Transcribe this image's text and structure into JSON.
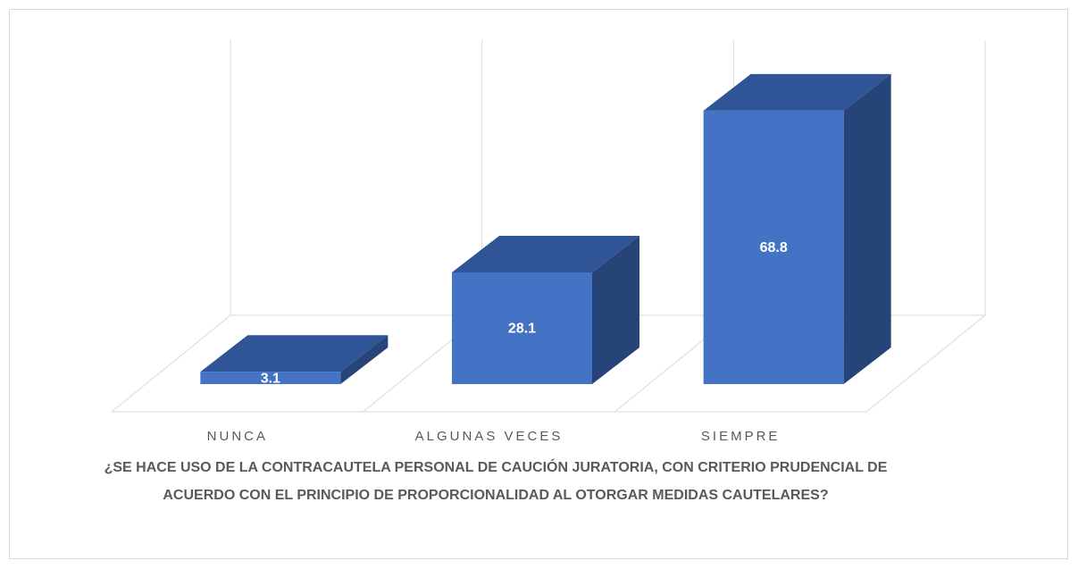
{
  "chart_data": {
    "type": "bar3d",
    "title": "¿SE HACE USO DE LA CONTRACAUTELA PERSONAL DE CAUCIÓN JURATORIA, CON CRITERIO PRUDENCIAL DE ACUERDO CON EL PRINCIPIO DE PROPORCIONALIDAD AL OTORGAR MEDIDAS CAUTELARES?",
    "categories": [
      "NUNCA",
      "ALGUNAS VECES",
      "SIEMPRE"
    ],
    "values": [
      3.1,
      28.1,
      68.8
    ],
    "color": "#4472c4",
    "ylim": [
      0,
      80
    ]
  }
}
